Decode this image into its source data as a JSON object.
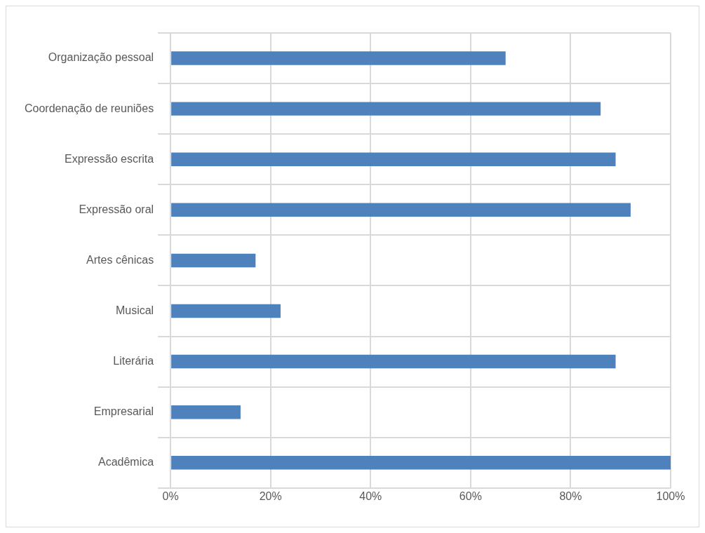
{
  "chart_data": {
    "type": "bar",
    "orientation": "horizontal",
    "categories": [
      "Organização pessoal",
      "Coordenação de reuniões",
      "Expressão escrita",
      "Expressão oral",
      "Artes cênicas",
      "Musical",
      "Literária",
      "Empresarial",
      "Acadêmica"
    ],
    "values": [
      67,
      86,
      89,
      92,
      17,
      22,
      89,
      14,
      100
    ],
    "color": "#4f81bd",
    "xlim": [
      0,
      100
    ],
    "xticks": [
      {
        "value": 0,
        "label": "0%"
      },
      {
        "value": 20,
        "label": "20%"
      },
      {
        "value": 40,
        "label": "40%"
      },
      {
        "value": 60,
        "label": "60%"
      },
      {
        "value": 80,
        "label": "80%"
      },
      {
        "value": 100,
        "label": "100%"
      }
    ],
    "grid": true
  }
}
